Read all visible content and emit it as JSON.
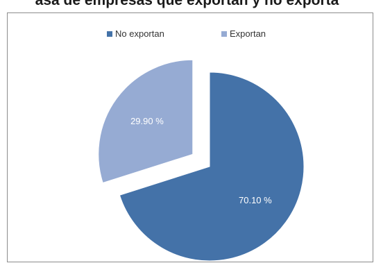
{
  "chart_data": {
    "type": "pie",
    "title": "asa de empresas que exportan y no exporta",
    "legend_position": "top",
    "series": [
      {
        "name": "No exportan",
        "value": 70.1,
        "label": "70.10 %",
        "color": "#4472a8",
        "exploded": false
      },
      {
        "name": "Exportan",
        "value": 29.9,
        "label": "29.90 %",
        "color": "#96abd3",
        "exploded": true
      }
    ]
  }
}
